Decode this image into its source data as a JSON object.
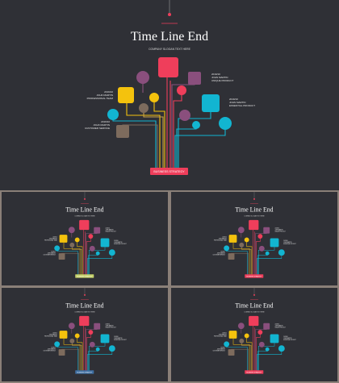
{
  "slide": {
    "title": "Time Line End",
    "subtitle": "COMPANY SLOGAN TEXT HERE",
    "footer_label": "BUSINESS STRATEGY",
    "annotations": [
      {
        "year": "2019/10",
        "name": "JOHN MARTIN",
        "desc": "PROFESSIONAL TEAM"
      },
      {
        "year": "2019/10",
        "name": "JOHN MARTIN",
        "desc": "CUSTOMER SERVICE"
      },
      {
        "year": "2019/10",
        "name": "JOHN MARTIN",
        "desc": "UNIQUE PRODUCT"
      },
      {
        "year": "2019/10",
        "name": "JOHN MARTIN",
        "desc": "ESSENTIAL PRODUCT"
      }
    ]
  },
  "colors": {
    "background": "#2f3036",
    "red": "#ef3e5b",
    "purple": "#8a4f7d",
    "yellow": "#f4c20d",
    "brown": "#7d6b5d",
    "cyan": "#12b5d1",
    "footer_variants": [
      "#ef3e5b",
      "#c5d16a",
      "#ef3e5b",
      "#3f6fa3",
      "#ef3e5b"
    ]
  }
}
